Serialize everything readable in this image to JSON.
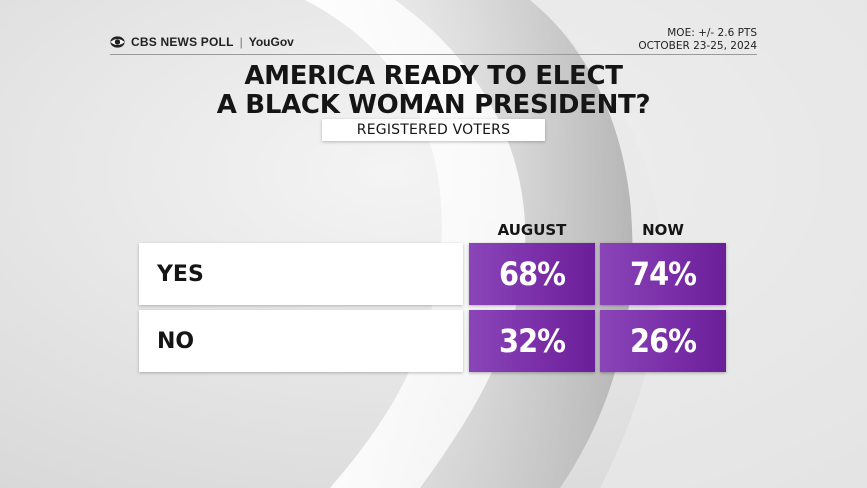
{
  "header": {
    "brand": "CBS NEWS POLL",
    "partner": "YouGov",
    "moe": "MOE: +/- 2.6 PTS",
    "dates": "OCTOBER 23-25, 2024"
  },
  "title_line1": "AMERICA READY TO ELECT",
  "title_line2": "A BLACK WOMAN PRESIDENT?",
  "subtitle": "REGISTERED VOTERS",
  "colors": {
    "accent": "#7a2fa8",
    "cell_light": "#8a45b8",
    "cell_dark": "#6a1f99",
    "background": "#e6e6e6"
  },
  "chart_data": {
    "type": "table",
    "title": "AMERICA READY TO ELECT A BLACK WOMAN PRESIDENT?",
    "subtitle": "REGISTERED VOTERS",
    "columns": [
      "AUGUST",
      "NOW"
    ],
    "rows": [
      {
        "label": "YES",
        "values": [
          68,
          74
        ],
        "display": [
          "68%",
          "74%"
        ]
      },
      {
        "label": "NO",
        "values": [
          32,
          26
        ],
        "display": [
          "32%",
          "26%"
        ]
      }
    ],
    "unit": "%"
  }
}
